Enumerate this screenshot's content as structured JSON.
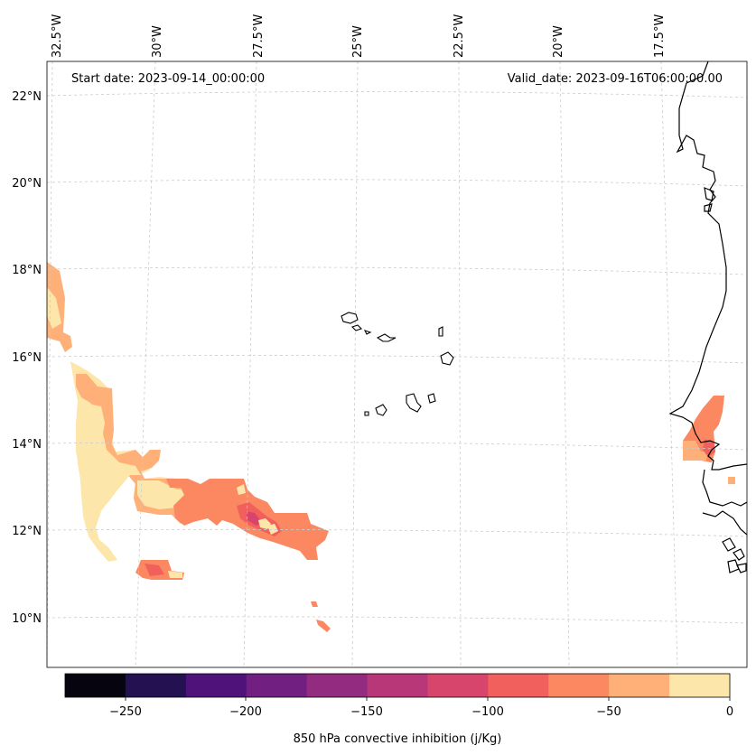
{
  "map": {
    "start_date_label": "Start date: 2023-09-14_00:00:00",
    "valid_date_label": "Valid_date: 2023-09-16T06:00:00.00",
    "lon_labels": [
      "32.5°W",
      "30°W",
      "27.5°W",
      "25°W",
      "22.5°W",
      "20°W",
      "17.5°W"
    ],
    "lat_labels": [
      "22°N",
      "20°N",
      "18°N",
      "16°N",
      "14°N",
      "12°N",
      "10°N"
    ],
    "extent": {
      "lon_min": -32.7,
      "lon_max": -15.3,
      "lat_min": 8.9,
      "lat_max": 22.8
    },
    "coastline_color": "#000000",
    "gridline_color": "#cccccc"
  },
  "colorbar": {
    "label": "850 hPa convective inhibition (j/Kg)",
    "tick_labels": [
      "−250",
      "−200",
      "−150",
      "−100",
      "−50",
      "0"
    ],
    "levels": [
      -275,
      -250,
      -225,
      -200,
      -175,
      -150,
      -125,
      -100,
      -75,
      -50,
      -25,
      0
    ],
    "colors": [
      "#05040f",
      "#231151",
      "#4f127b",
      "#711f81",
      "#932b80",
      "#b73779",
      "#d8456c",
      "#f1605d",
      "#fb8861",
      "#feb078",
      "#fde6a9"
    ]
  },
  "chart_data": {
    "type": "heatmap",
    "title": "",
    "variable": "850 hPa convective inhibition",
    "units": "j/Kg",
    "value_range": [
      -275,
      0
    ],
    "regions": [
      {
        "name": "west-coast-patch",
        "lon": -32.5,
        "lat": 17.2,
        "value": -40
      },
      {
        "name": "west-inner-patch",
        "lon": -32.3,
        "lat": 16.9,
        "value": -20
      },
      {
        "name": "main-yellow-band",
        "lon": -31.0,
        "lat": 13.5,
        "value": -15
      },
      {
        "name": "orange-tongue",
        "lon": -28.5,
        "lat": 12.7,
        "value": -45
      },
      {
        "name": "salmon-core",
        "lon": -26.5,
        "lat": 12.2,
        "value": -70
      },
      {
        "name": "red-core",
        "lon": -26.8,
        "lat": 12.1,
        "value": -90
      },
      {
        "name": "small-south-patch",
        "lon": -29.6,
        "lat": 11.1,
        "value": -70
      },
      {
        "name": "african-coast-patch",
        "lon": -16.7,
        "lat": 14.2,
        "value": -70
      },
      {
        "name": "african-coast-fringe",
        "lon": -16.9,
        "lat": 13.9,
        "value": -40
      },
      {
        "name": "isolated-south-spot",
        "lon": -25.4,
        "lat": 9.7,
        "value": -60
      }
    ]
  }
}
